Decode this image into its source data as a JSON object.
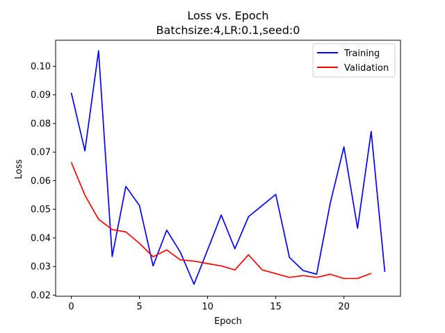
{
  "chart_data": {
    "type": "line",
    "title": "Loss vs. Epoch",
    "subtitle": "Batchsize:4,LR:0.1,seed:0",
    "xlabel": "Epoch",
    "ylabel": "Loss",
    "xlim": [
      -1.15,
      24.15
    ],
    "ylim": [
      0.0196,
      0.1091
    ],
    "xticks": [
      0,
      5,
      10,
      15,
      20
    ],
    "yticks": [
      0.02,
      0.03,
      0.04,
      0.05,
      0.06,
      0.07,
      0.08,
      0.09,
      0.1
    ],
    "ytick_labels": [
      "0.02",
      "0.03",
      "0.04",
      "0.05",
      "0.06",
      "0.07",
      "0.08",
      "0.09",
      "0.10"
    ],
    "grid": false,
    "legend_position": "top-right",
    "series": [
      {
        "name": "Training",
        "color": "#0000ff",
        "x": [
          0,
          1,
          2,
          3,
          4,
          5,
          6,
          7,
          8,
          9,
          10,
          11,
          12,
          13,
          14,
          15,
          16,
          17,
          18,
          19,
          20,
          21,
          22,
          23
        ],
        "values": [
          0.0907,
          0.0704,
          0.1054,
          0.0335,
          0.058,
          0.0513,
          0.0302,
          0.0427,
          0.035,
          0.0238,
          0.0358,
          0.048,
          0.0362,
          0.0474,
          0.0513,
          0.0552,
          0.0332,
          0.0286,
          0.0273,
          0.0522,
          0.0718,
          0.0434,
          0.0772,
          0.0281
        ]
      },
      {
        "name": "Validation",
        "color": "#ff0000",
        "x": [
          0,
          1,
          2,
          3,
          4,
          5,
          6,
          7,
          8,
          9,
          10,
          11,
          12,
          13,
          14,
          15,
          16,
          17,
          18,
          19,
          20,
          21,
          22
        ],
        "values": [
          0.0664,
          0.0549,
          0.0465,
          0.0429,
          0.0421,
          0.0381,
          0.0334,
          0.0358,
          0.0323,
          0.0319,
          0.031,
          0.0302,
          0.0288,
          0.0341,
          0.0288,
          0.0275,
          0.0262,
          0.0268,
          0.0262,
          0.0273,
          0.0258,
          0.0258,
          0.0276
        ]
      }
    ]
  }
}
